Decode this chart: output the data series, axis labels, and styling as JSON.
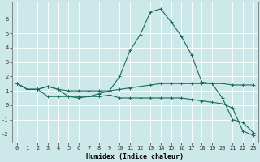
{
  "xlabel": "Humidex (Indice chaleur)",
  "bg_color": "#cce8e8",
  "grid_color": "#b0d8d8",
  "line_color": "#1a6b5a",
  "xlim": [
    -0.5,
    23.5
  ],
  "ylim": [
    -2.6,
    7.2
  ],
  "xticks": [
    0,
    1,
    2,
    3,
    4,
    5,
    6,
    7,
    8,
    9,
    10,
    11,
    12,
    13,
    14,
    15,
    16,
    17,
    18,
    19,
    20,
    21,
    22,
    23
  ],
  "yticks": [
    -2,
    -1,
    0,
    1,
    2,
    3,
    4,
    5,
    6
  ],
  "series1_x": [
    0,
    1,
    2,
    3,
    4,
    5,
    6,
    7,
    8,
    9,
    10,
    11,
    12,
    13,
    14,
    15,
    16,
    17,
    18,
    19,
    20,
    21,
    22,
    23
  ],
  "series1_y": [
    1.5,
    1.1,
    1.1,
    1.3,
    1.1,
    1.0,
    1.0,
    1.0,
    1.0,
    1.0,
    1.1,
    1.2,
    1.3,
    1.4,
    1.5,
    1.5,
    1.5,
    1.5,
    1.5,
    1.5,
    1.5,
    1.4,
    1.4,
    1.4
  ],
  "series2_x": [
    0,
    1,
    2,
    3,
    4,
    5,
    6,
    7,
    8,
    9,
    10,
    11,
    12,
    13,
    14,
    15,
    16,
    17,
    18,
    19,
    20,
    21,
    22,
    23
  ],
  "series2_y": [
    1.5,
    1.1,
    1.1,
    1.3,
    1.1,
    0.6,
    0.6,
    0.6,
    0.8,
    1.0,
    2.0,
    3.8,
    4.9,
    6.5,
    6.7,
    5.8,
    4.8,
    3.5,
    1.6,
    1.5,
    0.5,
    -1.0,
    -1.2,
    -1.9
  ],
  "series3_x": [
    0,
    1,
    2,
    3,
    4,
    5,
    6,
    7,
    8,
    9,
    10,
    11,
    12,
    13,
    14,
    15,
    16,
    17,
    18,
    19,
    20,
    21,
    22,
    23
  ],
  "series3_y": [
    1.5,
    1.1,
    1.1,
    0.6,
    0.6,
    0.6,
    0.5,
    0.6,
    0.6,
    0.7,
    0.5,
    0.5,
    0.5,
    0.5,
    0.5,
    0.5,
    0.5,
    0.4,
    0.3,
    0.2,
    0.1,
    -0.2,
    -1.8,
    -2.1
  ],
  "tick_fontsize": 5.0,
  "xlabel_fontsize": 6.0
}
